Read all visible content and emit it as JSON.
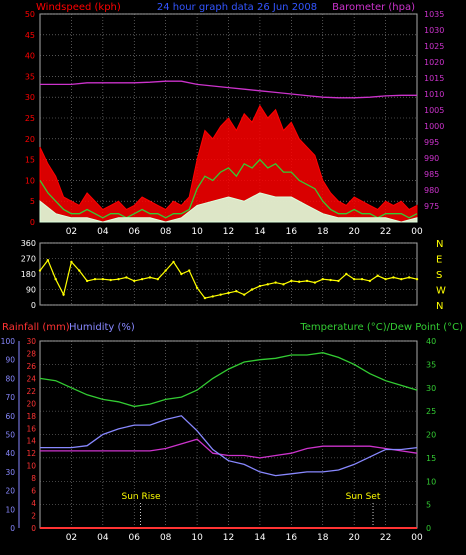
{
  "chart_data": [
    {
      "type": "line",
      "panel": "wind-barometer",
      "title": "24 hour graph data   26 Jun 2008",
      "left_axis_label": "Windspeed (kph)",
      "right_axis_label": "Barometer (hpa)",
      "xlim": [
        0,
        24
      ],
      "x_ticks": [
        "02",
        "04",
        "06",
        "08",
        "10",
        "12",
        "14",
        "16",
        "18",
        "20",
        "22",
        "00"
      ],
      "left_ylim": [
        0,
        50
      ],
      "left_ticks": [
        0,
        5,
        10,
        15,
        20,
        25,
        30,
        35,
        40,
        45,
        50
      ],
      "right_ylim": [
        970,
        1035
      ],
      "right_ticks": [
        975,
        980,
        985,
        990,
        995,
        1000,
        1005,
        1010,
        1015,
        1020,
        1025,
        1030,
        1035
      ],
      "grid": true,
      "colors": {
        "gust": "#ff0000",
        "average": "#33cc33",
        "low": "#ddffdd",
        "barometer": "#cc33cc"
      },
      "series": [
        {
          "role": "gust",
          "axis": "left",
          "x": [
            0,
            0.5,
            1,
            1.5,
            2,
            2.5,
            3,
            3.5,
            4,
            4.5,
            5,
            5.5,
            6,
            6.5,
            7,
            7.5,
            8,
            8.5,
            9,
            9.5,
            10,
            10.5,
            11,
            11.5,
            12,
            12.5,
            13,
            13.5,
            14,
            14.5,
            15,
            15.5,
            16,
            16.5,
            17,
            17.5,
            18,
            18.5,
            19,
            19.5,
            20,
            20.5,
            21,
            21.5,
            22,
            22.5,
            23,
            23.5,
            24
          ],
          "y": [
            18,
            14,
            11,
            6,
            5,
            4,
            7,
            5,
            3,
            4,
            5,
            3,
            4,
            6,
            5,
            4,
            3,
            5,
            4,
            6,
            15,
            22,
            20,
            23,
            25,
            22,
            26,
            24,
            28,
            25,
            27,
            22,
            24,
            20,
            18,
            16,
            10,
            7,
            5,
            4,
            6,
            5,
            4,
            3,
            5,
            4,
            5,
            3,
            4
          ]
        },
        {
          "role": "average",
          "axis": "left",
          "x": [
            0,
            0.5,
            1,
            1.5,
            2,
            2.5,
            3,
            3.5,
            4,
            4.5,
            5,
            5.5,
            6,
            6.5,
            7,
            7.5,
            8,
            8.5,
            9,
            9.5,
            10,
            10.5,
            11,
            11.5,
            12,
            12.5,
            13,
            13.5,
            14,
            14.5,
            15,
            15.5,
            16,
            16.5,
            17,
            17.5,
            18,
            18.5,
            19,
            19.5,
            20,
            20.5,
            21,
            21.5,
            22,
            22.5,
            23,
            23.5,
            24
          ],
          "y": [
            10,
            7,
            5,
            3,
            2,
            2,
            3,
            2,
            1,
            2,
            2,
            1,
            2,
            3,
            2,
            2,
            1,
            2,
            2,
            3,
            8,
            11,
            10,
            12,
            13,
            11,
            14,
            13,
            15,
            13,
            14,
            12,
            12,
            10,
            9,
            8,
            5,
            3,
            2,
            2,
            3,
            2,
            2,
            1,
            2,
            2,
            2,
            1,
            2
          ]
        },
        {
          "role": "low",
          "axis": "left",
          "x": [
            0,
            1,
            2,
            3,
            4,
            5,
            6,
            7,
            8,
            9,
            10,
            11,
            12,
            13,
            14,
            15,
            16,
            17,
            18,
            19,
            20,
            21,
            22,
            23,
            24
          ],
          "y": [
            5,
            2,
            1,
            1,
            0,
            1,
            1,
            1,
            0,
            1,
            4,
            5,
            6,
            5,
            7,
            6,
            6,
            4,
            2,
            1,
            1,
            1,
            1,
            0,
            1
          ]
        },
        {
          "role": "barometer",
          "axis": "right",
          "x": [
            0,
            1,
            2,
            3,
            4,
            5,
            6,
            7,
            8,
            9,
            10,
            11,
            12,
            13,
            14,
            15,
            16,
            17,
            18,
            19,
            20,
            21,
            22,
            23,
            24
          ],
          "y": [
            1013,
            1013,
            1013,
            1013.5,
            1013.5,
            1013.5,
            1013.5,
            1013.7,
            1014,
            1014,
            1013,
            1012.5,
            1012,
            1011.5,
            1011,
            1010.5,
            1010,
            1009.5,
            1009,
            1008.8,
            1008.8,
            1009,
            1009.4,
            1009.6,
            1009.6
          ]
        }
      ]
    },
    {
      "type": "scatter",
      "panel": "wind-direction",
      "xlim": [
        0,
        24
      ],
      "ylim": [
        0,
        360
      ],
      "ticks": [
        0,
        90,
        180,
        270,
        360
      ],
      "compass_labels": [
        "N",
        "W",
        "S",
        "E",
        "N"
      ],
      "color": "#ffff00",
      "series": [
        {
          "role": "direction",
          "x": [
            0,
            0.5,
            1,
            1.5,
            2,
            2.5,
            3,
            3.5,
            4,
            4.5,
            5,
            5.5,
            6,
            6.5,
            7,
            7.5,
            8,
            8.5,
            9,
            9.5,
            10,
            10.5,
            11,
            11.5,
            12,
            12.5,
            13,
            13.5,
            14,
            14.5,
            15,
            15.5,
            16,
            16.5,
            17,
            17.5,
            18,
            18.5,
            19,
            19.5,
            20,
            20.5,
            21,
            21.5,
            22,
            22.5,
            23,
            23.5,
            24
          ],
          "y": [
            200,
            260,
            150,
            60,
            250,
            200,
            140,
            150,
            150,
            145,
            150,
            160,
            140,
            150,
            160,
            150,
            200,
            250,
            180,
            200,
            100,
            40,
            50,
            60,
            70,
            80,
            60,
            90,
            110,
            120,
            130,
            120,
            140,
            135,
            140,
            130,
            150,
            145,
            140,
            180,
            150,
            150,
            140,
            170,
            150,
            160,
            150,
            160,
            150
          ]
        }
      ]
    },
    {
      "type": "line",
      "panel": "temp-humidity",
      "left_axis_labels": [
        "Rainfall (mm)",
        "Humidity (%)"
      ],
      "right_axis_label": "Temperature (°C)/Dew Point (°C)",
      "xlim": [
        0,
        24
      ],
      "x_ticks": [
        "02",
        "04",
        "06",
        "08",
        "10",
        "12",
        "14",
        "16",
        "18",
        "20",
        "22",
        "00"
      ],
      "humidity_ylim": [
        0,
        100
      ],
      "humidity_ticks": [
        0,
        10,
        20,
        30,
        40,
        50,
        60,
        70,
        80,
        90,
        100
      ],
      "rain_ylim": [
        0,
        30
      ],
      "rain_ticks": [
        0,
        2,
        4,
        6,
        8,
        10,
        12,
        14,
        16,
        18,
        20,
        22,
        24,
        26,
        28,
        30
      ],
      "temp_ylim": [
        0,
        40
      ],
      "temp_ticks": [
        0,
        5,
        10,
        15,
        20,
        25,
        30,
        35,
        40
      ],
      "annotations": [
        "Sun Rise",
        "Sun Set"
      ],
      "annotation_x": [
        6.4,
        21.2
      ],
      "colors": {
        "rainfall": "#ff3333",
        "humidity": "#8888ff",
        "temperature": "#33cc33",
        "dewpoint": "#cc33cc"
      },
      "series": [
        {
          "role": "temperature",
          "axis": "temp",
          "x": [
            0,
            1,
            2,
            3,
            4,
            5,
            6,
            7,
            8,
            9,
            10,
            11,
            12,
            13,
            14,
            15,
            16,
            17,
            18,
            19,
            20,
            21,
            22,
            23,
            24
          ],
          "y": [
            32,
            31.5,
            30,
            28.5,
            27.5,
            27,
            26,
            26.5,
            27.5,
            28,
            29.5,
            32,
            34,
            35.5,
            36,
            36.3,
            37,
            37,
            37.5,
            36.5,
            35,
            33,
            31.5,
            30.5,
            29.5
          ]
        },
        {
          "role": "dewpoint",
          "axis": "temp",
          "x": [
            0,
            1,
            2,
            3,
            4,
            5,
            6,
            7,
            8,
            9,
            10,
            11,
            12,
            13,
            14,
            15,
            16,
            17,
            18,
            19,
            20,
            21,
            22,
            23,
            24
          ],
          "y": [
            16.5,
            16.5,
            16.5,
            16.5,
            16.5,
            16.5,
            16.5,
            16.5,
            17,
            18,
            19,
            16,
            15.5,
            15.5,
            15,
            15.5,
            16,
            17,
            17.5,
            17.5,
            17.5,
            17.5,
            17,
            16.5,
            16
          ]
        },
        {
          "role": "humidity",
          "axis": "humidity",
          "x": [
            0,
            1,
            2,
            3,
            4,
            5,
            6,
            7,
            8,
            9,
            10,
            11,
            12,
            13,
            14,
            15,
            16,
            17,
            18,
            19,
            20,
            21,
            22,
            23,
            24
          ],
          "y": [
            43,
            43,
            43,
            44,
            50,
            53,
            55,
            55,
            58,
            60,
            52,
            42,
            36,
            34,
            30,
            28,
            29,
            30,
            30,
            31,
            34,
            38,
            42,
            42,
            43
          ]
        },
        {
          "role": "rainfall",
          "axis": "rain",
          "x": [
            0,
            24
          ],
          "y": [
            0,
            0
          ]
        }
      ]
    }
  ]
}
